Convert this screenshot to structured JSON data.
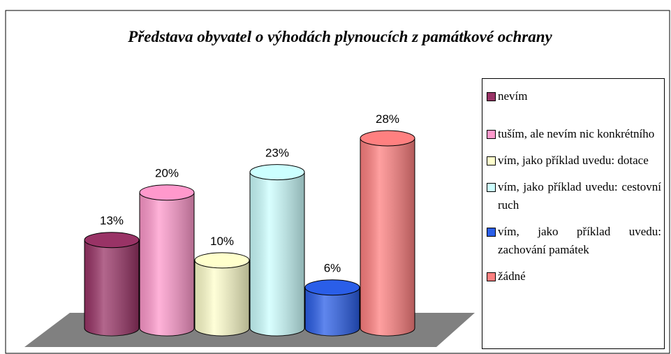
{
  "chart_data": {
    "type": "cylinder-bar",
    "title": "Představa obyvatel o výhodách plynoucích z památkové ochrany",
    "categories": [
      "nevím",
      "tuším, ale nevím nic konkrétního",
      "vím, jako příklad uvedu: dotace",
      "vím, jako příklad uvedu: cestovní ruch",
      "vím, jako příklad uvedu: zachování památek",
      "žádné"
    ],
    "values": [
      13,
      20,
      10,
      23,
      6,
      28
    ],
    "value_labels": [
      "13%",
      "20%",
      "10%",
      "23%",
      "6%",
      "28%"
    ],
    "colors": [
      "#993366",
      "#ff99cc",
      "#ffffcc",
      "#ccffff",
      "#2a5ee8",
      "#ff8080"
    ],
    "legend": "right"
  }
}
